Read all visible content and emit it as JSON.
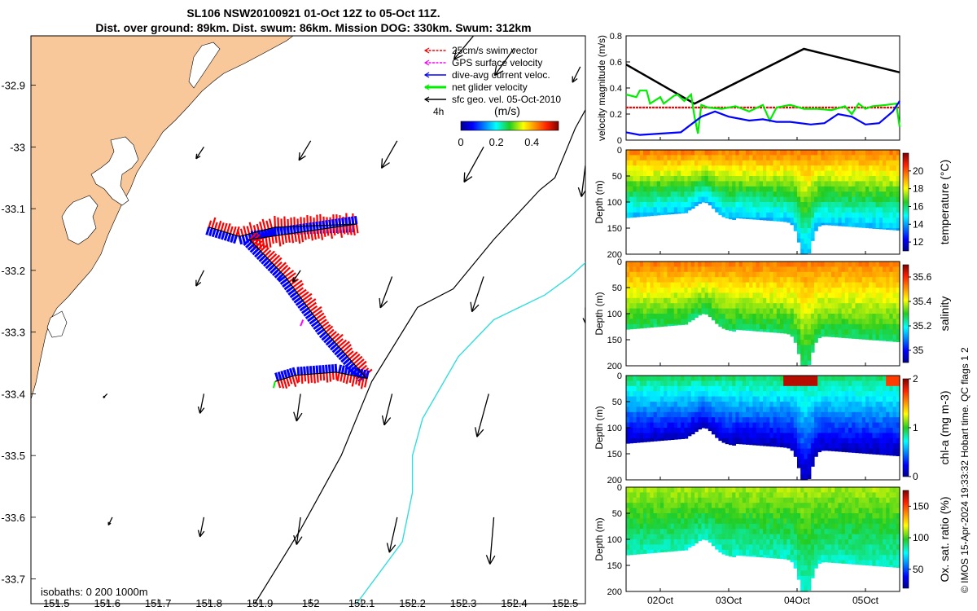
{
  "title_line1": "SL106 NSW20100921 01-Oct 12Z to 05-Oct 11Z.",
  "title_line2": "Dist. over ground: 89km. Dist. swum: 86km. Mission DOG: 330km. Swum: 312km",
  "footer": "© IMOS 15-Apr-2024 19:33:32 Hobart time. QC flags 1  2",
  "colors": {
    "land": "#f8c89a",
    "swim": "#ff0000",
    "gps": "#ff00ff",
    "current": "#0000ff",
    "net": "#00ee00",
    "isobath200": "#000000",
    "isobath1000": "#33dddd"
  },
  "chart_data": [
    {
      "id": "map",
      "type": "map",
      "x_ticks": [
        "151.5",
        "151.6",
        "151.7",
        "151.8",
        "151.9",
        "152",
        "152.1",
        "152.2",
        "152.3",
        "152.4",
        "152.5"
      ],
      "x_tick_values": [
        151.5,
        151.6,
        151.7,
        151.8,
        151.9,
        152.0,
        152.1,
        152.2,
        152.3,
        152.4,
        152.5
      ],
      "y_ticks": [
        "-32.9",
        "-33",
        "-33.1",
        "-33.2",
        "-33.3",
        "-33.4",
        "-33.5",
        "-33.6",
        "-33.7"
      ],
      "y_tick_values": [
        -32.9,
        -33.0,
        -33.1,
        -33.2,
        -33.3,
        -33.4,
        -33.5,
        -33.6,
        -33.7
      ],
      "xlim": [
        151.45,
        152.54
      ],
      "ylim": [
        -33.74,
        -32.82
      ],
      "legend": [
        {
          "label": "25cm/s swim vector",
          "color": "#ff0000"
        },
        {
          "label": "GPS surface velocity",
          "color": "#ff00ff"
        },
        {
          "label": "dive-avg current veloc.",
          "color": "#0000ff"
        },
        {
          "label": "net glider velocity",
          "color": "#00ee00"
        },
        {
          "label": "sfc geo. vel. 05-Oct-2010",
          "color": "#000000"
        }
      ],
      "time_step_label": "4h",
      "colorbar": {
        "label": "(m/s)",
        "ticks": [
          "0",
          "0.2",
          "0.4"
        ],
        "tick_values": [
          0,
          0.2,
          0.4
        ],
        "range": [
          0,
          0.55
        ]
      },
      "isobaths_label": "isobaths: 0   200  1000m",
      "glider_track": [
        [
          151.8,
          -33.13
        ],
        [
          151.86,
          -33.145
        ],
        [
          151.93,
          -33.13
        ],
        [
          152.09,
          -33.125
        ],
        [
          151.88,
          -33.15
        ],
        [
          151.95,
          -33.21
        ],
        [
          152.03,
          -33.3
        ],
        [
          152.11,
          -33.375
        ],
        [
          152.05,
          -33.365
        ],
        [
          151.97,
          -33.37
        ],
        [
          151.93,
          -33.38
        ]
      ],
      "surface_arrows": [
        {
          "lon": 152.32,
          "lat": -32.82,
          "u": -0.05,
          "v": -0.06
        },
        {
          "lon": 152.4,
          "lat": -32.84,
          "u": -0.05,
          "v": -0.07
        },
        {
          "lon": 152.53,
          "lat": -32.87,
          "u": -0.02,
          "v": -0.04
        },
        {
          "lon": 151.79,
          "lat": -33.0,
          "u": -0.02,
          "v": -0.03
        },
        {
          "lon": 152.0,
          "lat": -32.99,
          "u": -0.03,
          "v": -0.05
        },
        {
          "lon": 152.17,
          "lat": -32.99,
          "u": -0.04,
          "v": -0.07
        },
        {
          "lon": 152.34,
          "lat": -33.0,
          "u": -0.05,
          "v": -0.09
        },
        {
          "lon": 152.54,
          "lat": -33.03,
          "u": -0.01,
          "v": -0.08
        },
        {
          "lon": 151.79,
          "lat": -33.2,
          "u": -0.02,
          "v": -0.04
        },
        {
          "lon": 151.98,
          "lat": -33.2,
          "u": -0.02,
          "v": -0.03
        },
        {
          "lon": 152.16,
          "lat": -33.21,
          "u": -0.03,
          "v": -0.08
        },
        {
          "lon": 152.34,
          "lat": -33.21,
          "u": -0.03,
          "v": -0.09
        },
        {
          "lon": 152.54,
          "lat": -33.26,
          "u": -0.0,
          "v": -0.04
        },
        {
          "lon": 151.6,
          "lat": -33.4,
          "u": -0.01,
          "v": -0.01
        },
        {
          "lon": 151.79,
          "lat": -33.4,
          "u": -0.01,
          "v": -0.05
        },
        {
          "lon": 151.98,
          "lat": -33.4,
          "u": -0.01,
          "v": -0.07
        },
        {
          "lon": 152.16,
          "lat": -33.4,
          "u": -0.02,
          "v": -0.08
        },
        {
          "lon": 152.35,
          "lat": -33.4,
          "u": -0.03,
          "v": -0.11
        },
        {
          "lon": 151.61,
          "lat": -33.6,
          "u": -0.01,
          "v": -0.02
        },
        {
          "lon": 151.79,
          "lat": -33.6,
          "u": -0.01,
          "v": -0.05
        },
        {
          "lon": 151.98,
          "lat": -33.6,
          "u": -0.01,
          "v": -0.07
        },
        {
          "lon": 152.17,
          "lat": -33.6,
          "u": -0.02,
          "v": -0.09
        },
        {
          "lon": 152.36,
          "lat": -33.6,
          "u": -0.01,
          "v": -0.12
        }
      ]
    },
    {
      "id": "velocity",
      "type": "line",
      "ylabel": "velocity magnitude (m/s)",
      "yticks": [
        "0",
        "0.2",
        "0.4",
        "0.6",
        "0.8"
      ],
      "ytick_values": [
        0,
        0.2,
        0.4,
        0.6,
        0.8
      ],
      "ylim": [
        0,
        0.8
      ],
      "xlim": [
        0,
        4
      ],
      "series": [
        {
          "name": "sfc geo. vel.",
          "color": "#000000",
          "x": [
            0,
            1.0,
            2.6,
            4.0
          ],
          "values": [
            0.58,
            0.28,
            0.7,
            0.52
          ]
        },
        {
          "name": "25cm/s swim vector",
          "color": "#ff0000",
          "x": [
            0,
            4.0
          ],
          "values": [
            0.25,
            0.25
          ]
        },
        {
          "name": "net glider velocity",
          "color": "#00ee00",
          "x": [
            0,
            0.15,
            0.2,
            0.3,
            0.35,
            0.5,
            0.55,
            0.7,
            0.75,
            0.85,
            0.95,
            1.0,
            1.05,
            1.1,
            1.2,
            1.4,
            1.6,
            1.8,
            2.0,
            2.1,
            2.2,
            2.4,
            2.6,
            2.8,
            3.0,
            3.2,
            3.3,
            3.4,
            3.5,
            3.6,
            3.8,
            3.95,
            4.0
          ],
          "values": [
            0.35,
            0.33,
            0.38,
            0.38,
            0.28,
            0.33,
            0.28,
            0.34,
            0.35,
            0.3,
            0.35,
            0.18,
            0.05,
            0.27,
            0.25,
            0.24,
            0.26,
            0.22,
            0.27,
            0.15,
            0.25,
            0.27,
            0.24,
            0.24,
            0.23,
            0.26,
            0.2,
            0.28,
            0.24,
            0.26,
            0.27,
            0.28,
            0.1
          ]
        },
        {
          "name": "dive-avg current veloc.",
          "color": "#0000ff",
          "x": [
            0,
            0.2,
            0.5,
            0.8,
            1.1,
            1.3,
            1.5,
            1.8,
            2.0,
            2.2,
            2.4,
            2.7,
            2.9,
            3.1,
            3.3,
            3.5,
            3.7,
            3.9,
            4.0
          ],
          "values": [
            0.06,
            0.04,
            0.05,
            0.06,
            0.18,
            0.22,
            0.18,
            0.15,
            0.16,
            0.14,
            0.14,
            0.12,
            0.13,
            0.2,
            0.18,
            0.12,
            0.13,
            0.22,
            0.3
          ]
        }
      ]
    },
    {
      "id": "temperature",
      "type": "heatmap",
      "ylabel": "Depth (m)",
      "cbar_label": "temperature (°C)",
      "yticks": [
        "0",
        "50",
        "100",
        "150",
        "200"
      ],
      "ytick_values": [
        0,
        50,
        100,
        150,
        200
      ],
      "cbar_ticks": [
        "12",
        "14",
        "16",
        "18",
        "20"
      ],
      "cbar_tick_values": [
        12,
        14,
        16,
        18,
        20
      ],
      "vmin": 11,
      "vmax": 22,
      "surface_value": 19.5,
      "bottom_value": 14
    },
    {
      "id": "salinity",
      "type": "heatmap",
      "ylabel": "Depth (m)",
      "cbar_label": "salinity",
      "yticks": [
        "0",
        "50",
        "100",
        "150",
        "200"
      ],
      "ytick_values": [
        0,
        50,
        100,
        150,
        200
      ],
      "cbar_ticks": [
        "35",
        "35.2",
        "35.4",
        "35.6"
      ],
      "cbar_tick_values": [
        35.0,
        35.2,
        35.4,
        35.6
      ],
      "vmin": 34.9,
      "vmax": 35.7,
      "surface_value": 35.52,
      "bottom_value": 35.25
    },
    {
      "id": "chlorophyll",
      "type": "heatmap",
      "ylabel": "Depth (m)",
      "cbar_label": "chl-a (mg m-3)",
      "yticks": [
        "0",
        "50",
        "100",
        "150",
        "200"
      ],
      "ytick_values": [
        0,
        50,
        100,
        150,
        200
      ],
      "cbar_ticks": [
        "0",
        "1",
        "2"
      ],
      "cbar_tick_values": [
        0,
        1,
        2
      ],
      "vmin": 0,
      "vmax": 2,
      "surface_value": 0.9,
      "bottom_value": 0.05
    },
    {
      "id": "oxygen",
      "type": "heatmap",
      "ylabel": "Depth (m)",
      "cbar_label": "Ox. sat. ratio (%)",
      "yticks": [
        "0",
        "50",
        "100",
        "150",
        "200"
      ],
      "ytick_values": [
        0,
        50,
        100,
        150,
        200
      ],
      "cbar_ticks": [
        "50",
        "100",
        "150"
      ],
      "cbar_tick_values": [
        50,
        100,
        150
      ],
      "vmin": 20,
      "vmax": 175,
      "surface_value": 110,
      "bottom_value": 80
    },
    {
      "id": "time_axis",
      "type": "axis",
      "xticks": [
        "02Oct",
        "03Oct",
        "04Oct",
        "05Oct"
      ],
      "xtick_values": [
        0.5,
        1.5,
        2.5,
        3.5
      ],
      "xlim": [
        0,
        4
      ]
    }
  ]
}
